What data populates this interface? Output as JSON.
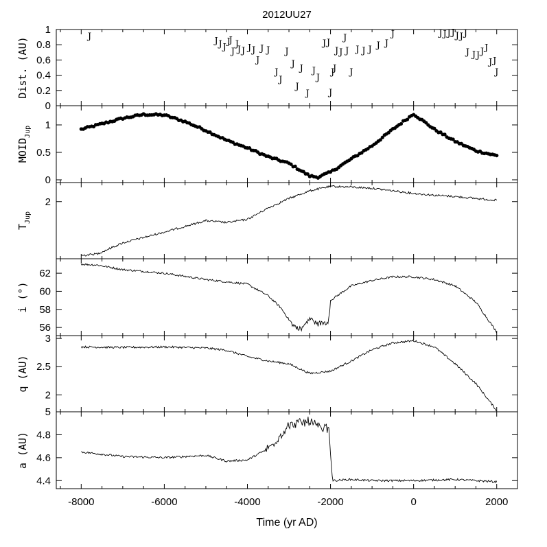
{
  "chart_data": {
    "type": "line",
    "title": "2012UU27",
    "xlabel": "Time (yr AD)",
    "xlim": [
      -8600,
      2500
    ],
    "x_ticks": [
      -8000,
      -6000,
      -4000,
      -2000,
      0,
      2000
    ],
    "x_tick_labels": [
      "-8000",
      "-6000",
      "-4000",
      "-2000",
      "0",
      "2000"
    ],
    "panels": [
      {
        "id": "dist",
        "ylabel": "Dist. (AU)",
        "ylim": [
          0,
          1
        ],
        "y_ticks": [
          0,
          0.2,
          0.4,
          0.6,
          0.8,
          1
        ],
        "y_tick_labels": [
          "0",
          "0.2",
          "0.4",
          "0.6",
          "0.8",
          "1"
        ],
        "marker_text": "J",
        "points": [
          [
            -7800,
            0.92
          ],
          [
            -4750,
            0.86
          ],
          [
            -4650,
            0.82
          ],
          [
            -4550,
            0.78
          ],
          [
            -4450,
            0.85
          ],
          [
            -4400,
            0.87
          ],
          [
            -4350,
            0.72
          ],
          [
            -4250,
            0.82
          ],
          [
            -4200,
            0.75
          ],
          [
            -4100,
            0.73
          ],
          [
            -3950,
            0.77
          ],
          [
            -3850,
            0.74
          ],
          [
            -3750,
            0.61
          ],
          [
            -3650,
            0.76
          ],
          [
            -3500,
            0.74
          ],
          [
            -3300,
            0.45
          ],
          [
            -3200,
            0.35
          ],
          [
            -3050,
            0.72
          ],
          [
            -2900,
            0.56
          ],
          [
            -2800,
            0.26
          ],
          [
            -2700,
            0.5
          ],
          [
            -2550,
            0.17
          ],
          [
            -2400,
            0.47
          ],
          [
            -2300,
            0.38
          ],
          [
            -2150,
            0.83
          ],
          [
            -2050,
            0.84
          ],
          [
            -2000,
            0.18
          ],
          [
            -1950,
            0.45
          ],
          [
            -1900,
            0.5
          ],
          [
            -1850,
            0.73
          ],
          [
            -1750,
            0.71
          ],
          [
            -1650,
            0.9
          ],
          [
            -1600,
            0.73
          ],
          [
            -1500,
            0.45
          ],
          [
            -1350,
            0.75
          ],
          [
            -1200,
            0.73
          ],
          [
            -1050,
            0.75
          ],
          [
            -850,
            0.8
          ],
          [
            -650,
            0.83
          ],
          [
            -500,
            0.95
          ],
          [
            650,
            0.96
          ],
          [
            750,
            0.95
          ],
          [
            850,
            0.96
          ],
          [
            950,
            0.97
          ],
          [
            1050,
            0.93
          ],
          [
            1150,
            0.92
          ],
          [
            1250,
            0.96
          ],
          [
            1300,
            0.71
          ],
          [
            1450,
            0.68
          ],
          [
            1550,
            0.67
          ],
          [
            1650,
            0.72
          ],
          [
            1750,
            0.77
          ],
          [
            1850,
            0.58
          ],
          [
            1950,
            0.6
          ],
          [
            2000,
            0.45
          ]
        ]
      },
      {
        "id": "moid",
        "ylabel": "MOID",
        "ylabel_sub": "Jup",
        "ylim": [
          -0.05,
          1.35
        ],
        "y_ticks": [
          0,
          0.5,
          1
        ],
        "y_tick_labels": [
          "0",
          "0.5",
          "1"
        ],
        "style": "dots",
        "keyframes": [
          [
            -8000,
            0.92
          ],
          [
            -7500,
            1.02
          ],
          [
            -7000,
            1.12
          ],
          [
            -6500,
            1.19
          ],
          [
            -6000,
            1.18
          ],
          [
            -5500,
            1.06
          ],
          [
            -5000,
            0.9
          ],
          [
            -4500,
            0.72
          ],
          [
            -4000,
            0.58
          ],
          [
            -3500,
            0.42
          ],
          [
            -3000,
            0.3
          ],
          [
            -2500,
            0.07
          ],
          [
            -2300,
            0.05
          ],
          [
            -2000,
            0.14
          ],
          [
            -1500,
            0.38
          ],
          [
            -1000,
            0.62
          ],
          [
            -500,
            0.92
          ],
          [
            0,
            1.2
          ],
          [
            500,
            0.92
          ],
          [
            1000,
            0.7
          ],
          [
            1500,
            0.53
          ],
          [
            2000,
            0.44
          ]
        ]
      },
      {
        "id": "tjup",
        "ylabel": "T",
        "ylabel_sub": "Jup",
        "ylim": [
          2.9,
          1.7
        ],
        "y_ticks": [
          2
        ],
        "y_tick_labels": [
          "2"
        ],
        "keyframes": [
          [
            -8000,
            2.85
          ],
          [
            -7600,
            2.82
          ],
          [
            -7000,
            2.65
          ],
          [
            -6000,
            2.48
          ],
          [
            -5000,
            2.3
          ],
          [
            -4500,
            2.33
          ],
          [
            -4000,
            2.28
          ],
          [
            -3500,
            2.1
          ],
          [
            -3000,
            1.95
          ],
          [
            -2500,
            1.83
          ],
          [
            -2000,
            1.76
          ],
          [
            -1500,
            1.77
          ],
          [
            -1000,
            1.79
          ],
          [
            -500,
            1.83
          ],
          [
            0,
            1.87
          ],
          [
            500,
            1.9
          ],
          [
            1000,
            1.92
          ],
          [
            1500,
            1.95
          ],
          [
            2000,
            1.98
          ]
        ]
      },
      {
        "id": "incl",
        "ylabel": "i (°)",
        "ylim": [
          55.1,
          63.6
        ],
        "y_ticks": [
          56,
          58,
          60,
          62
        ],
        "y_tick_labels": [
          "56",
          "58",
          "60",
          "62"
        ],
        "keyframes": [
          [
            -8000,
            63.0
          ],
          [
            -7600,
            62.9
          ],
          [
            -7000,
            62.4
          ],
          [
            -6000,
            62.0
          ],
          [
            -5000,
            61.3
          ],
          [
            -4000,
            60.8
          ],
          [
            -3500,
            59.5
          ],
          [
            -3200,
            58.2
          ],
          [
            -2900,
            56.2
          ],
          [
            -2700,
            55.8
          ],
          [
            -2500,
            57.0
          ],
          [
            -2300,
            56.4
          ],
          [
            -2050,
            56.6
          ],
          [
            -2000,
            59.0
          ],
          [
            -1500,
            60.6
          ],
          [
            -1000,
            61.2
          ],
          [
            -500,
            61.6
          ],
          [
            0,
            61.6
          ],
          [
            500,
            61.3
          ],
          [
            1000,
            60.6
          ],
          [
            1500,
            58.8
          ],
          [
            2000,
            55.5
          ]
        ]
      },
      {
        "id": "q",
        "ylabel": "q (AU)",
        "ylim": [
          1.7,
          3.05
        ],
        "y_ticks": [
          2,
          2.5,
          3
        ],
        "y_tick_labels": [
          "2",
          "2.5",
          "3"
        ],
        "keyframes": [
          [
            -8000,
            2.85
          ],
          [
            -7000,
            2.84
          ],
          [
            -6000,
            2.85
          ],
          [
            -5000,
            2.83
          ],
          [
            -4500,
            2.79
          ],
          [
            -4000,
            2.68
          ],
          [
            -3500,
            2.6
          ],
          [
            -3000,
            2.55
          ],
          [
            -2500,
            2.38
          ],
          [
            -2000,
            2.42
          ],
          [
            -1500,
            2.6
          ],
          [
            -1000,
            2.8
          ],
          [
            -500,
            2.92
          ],
          [
            0,
            2.96
          ],
          [
            500,
            2.85
          ],
          [
            1000,
            2.55
          ],
          [
            1500,
            2.2
          ],
          [
            2000,
            1.72
          ]
        ]
      },
      {
        "id": "a",
        "ylabel": "a (AU)",
        "ylim": [
          4.33,
          5.0
        ],
        "y_ticks": [
          4.4,
          4.6,
          4.8,
          5
        ],
        "y_tick_labels": [
          "4.4",
          "4.6",
          "4.8",
          "5"
        ],
        "keyframes": [
          [
            -8000,
            4.65
          ],
          [
            -7000,
            4.61
          ],
          [
            -6000,
            4.6
          ],
          [
            -5000,
            4.62
          ],
          [
            -4500,
            4.57
          ],
          [
            -4000,
            4.58
          ],
          [
            -3500,
            4.68
          ],
          [
            -3200,
            4.8
          ],
          [
            -3000,
            4.88
          ],
          [
            -2500,
            4.92
          ],
          [
            -2200,
            4.84
          ],
          [
            -2050,
            4.87
          ],
          [
            -1950,
            4.4
          ],
          [
            -1500,
            4.41
          ],
          [
            -1000,
            4.4
          ],
          [
            0,
            4.4
          ],
          [
            1000,
            4.41
          ],
          [
            2000,
            4.39
          ]
        ]
      }
    ]
  }
}
